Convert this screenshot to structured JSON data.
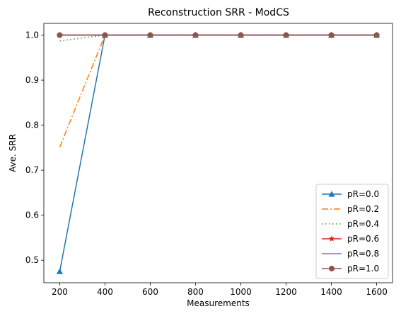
{
  "chart_data": {
    "type": "line",
    "title": "Reconstruction SRR - ModCS",
    "xlabel": "Measurements",
    "ylabel": "Ave. SRR",
    "xlim": [
      130,
      1670
    ],
    "ylim": [
      0.45,
      1.026
    ],
    "xticks": [
      200,
      400,
      600,
      800,
      1000,
      1200,
      1400,
      1600
    ],
    "yticks": [
      0.5,
      0.6,
      0.7,
      0.8,
      0.9,
      1.0
    ],
    "xtick_labels": [
      "200",
      "400",
      "600",
      "800",
      "1000",
      "1200",
      "1400",
      "1600"
    ],
    "ytick_labels": [
      "0.5",
      "0.6",
      "0.7",
      "0.8",
      "0.9",
      "1.0"
    ],
    "grid": false,
    "legend_position": "lower-right",
    "x": [
      200,
      400,
      600,
      800,
      1000,
      1200,
      1400,
      1600
    ],
    "series": [
      {
        "name": "pR=0.0",
        "color": "#1f77b4",
        "dash": "solid",
        "marker": "triangle",
        "values": [
          0.475,
          1.0,
          1.0,
          1.0,
          1.0,
          1.0,
          1.0,
          1.0
        ]
      },
      {
        "name": "pR=0.2",
        "color": "#ff7f0e",
        "dash": "dashdot",
        "marker": "none",
        "values": [
          0.751,
          1.0,
          1.0,
          1.0,
          1.0,
          1.0,
          1.0,
          1.0
        ]
      },
      {
        "name": "pR=0.4",
        "color": "#2ca02c",
        "dash": "dotted",
        "marker": "none",
        "values": [
          0.987,
          1.0,
          1.0,
          1.0,
          1.0,
          1.0,
          1.0,
          1.0
        ]
      },
      {
        "name": "pR=0.6",
        "color": "#d62728",
        "dash": "solid",
        "marker": "star",
        "values": [
          1.0,
          1.0,
          1.0,
          1.0,
          1.0,
          1.0,
          1.0,
          1.0
        ]
      },
      {
        "name": "pR=0.8",
        "color": "#9467bd",
        "dash": "solid",
        "marker": "none",
        "values": [
          1.0,
          1.0,
          1.0,
          1.0,
          1.0,
          1.0,
          1.0,
          1.0
        ]
      },
      {
        "name": "pR=1.0",
        "color": "#8c564b",
        "dash": "solid",
        "marker": "circle",
        "values": [
          1.0,
          1.0,
          1.0,
          1.0,
          1.0,
          1.0,
          1.0,
          1.0
        ]
      }
    ]
  }
}
